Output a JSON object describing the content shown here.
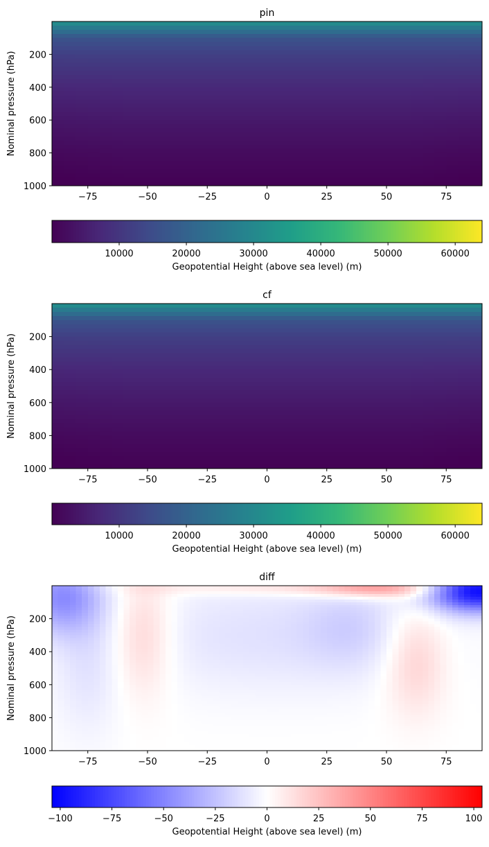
{
  "chart_data": [
    {
      "type": "heatmap",
      "title": "pin",
      "ylabel": "Nominal pressure (hPa)",
      "xlim": [
        -90,
        90
      ],
      "ylim": [
        1000,
        0
      ],
      "x_ticks": [
        -75,
        -50,
        -25,
        0,
        25,
        50,
        75
      ],
      "y_ticks": [
        200,
        400,
        600,
        800,
        1000
      ],
      "colormap": "viridis",
      "colorbar": {
        "label": "Geopotential Height (above sea level) (m)",
        "range": [
          0,
          64000
        ],
        "ticks": [
          10000,
          20000,
          30000,
          40000,
          50000,
          60000
        ],
        "tick_labels": [
          "10000",
          "20000",
          "30000",
          "40000",
          "50000",
          "60000"
        ],
        "orientation": "horizontal"
      },
      "field_samples": {
        "pressure_hPa": [
          10,
          100,
          200,
          400,
          600,
          800,
          1000
        ],
        "height_m": [
          31000,
          16500,
          12000,
          7200,
          4300,
          1900,
          100
        ]
      }
    },
    {
      "type": "heatmap",
      "title": "cf",
      "ylabel": "Nominal pressure (hPa)",
      "xlim": [
        -90,
        90
      ],
      "ylim": [
        1000,
        0
      ],
      "x_ticks": [
        -75,
        -50,
        -25,
        0,
        25,
        50,
        75
      ],
      "y_ticks": [
        200,
        400,
        600,
        800,
        1000
      ],
      "colormap": "viridis",
      "colorbar": {
        "label": "Geopotential Height (above sea level) (m)",
        "range": [
          0,
          64000
        ],
        "ticks": [
          10000,
          20000,
          30000,
          40000,
          50000,
          60000
        ],
        "tick_labels": [
          "10000",
          "20000",
          "30000",
          "40000",
          "50000",
          "60000"
        ],
        "orientation": "horizontal"
      },
      "field_samples": {
        "pressure_hPa": [
          10,
          100,
          200,
          400,
          600,
          800,
          1000
        ],
        "height_m": [
          31000,
          16500,
          12000,
          7200,
          4300,
          1900,
          100
        ]
      }
    },
    {
      "type": "heatmap",
      "title": "diff",
      "ylabel": "Nominal pressure (hPa)",
      "xlim": [
        -90,
        90
      ],
      "ylim": [
        1000,
        0
      ],
      "x_ticks": [
        -75,
        -50,
        -25,
        0,
        25,
        50,
        75
      ],
      "y_ticks": [
        200,
        400,
        600,
        800,
        1000
      ],
      "colormap": "bwr",
      "colorbar": {
        "label": "Geopotential Height (above sea level) (m)",
        "range": [
          -104,
          104
        ],
        "ticks": [
          -100,
          -75,
          -50,
          -25,
          0,
          25,
          50,
          75,
          100
        ],
        "tick_labels": [
          "−100",
          "−75",
          "−50",
          "−25",
          "0",
          "25",
          "50",
          "75",
          "100"
        ],
        "orientation": "horizontal"
      },
      "features": [
        {
          "lat": 85,
          "pressure_hPa": 40,
          "value": -100
        },
        {
          "lat": -85,
          "pressure_hPa": 60,
          "value": -50
        },
        {
          "lat": 45,
          "pressure_hPa": 20,
          "value": 40
        },
        {
          "lat": -50,
          "pressure_hPa": 200,
          "value": 20
        },
        {
          "lat": 62,
          "pressure_hPa": 400,
          "value": 20
        },
        {
          "lat": 35,
          "pressure_hPa": 200,
          "value": -25
        }
      ]
    }
  ]
}
